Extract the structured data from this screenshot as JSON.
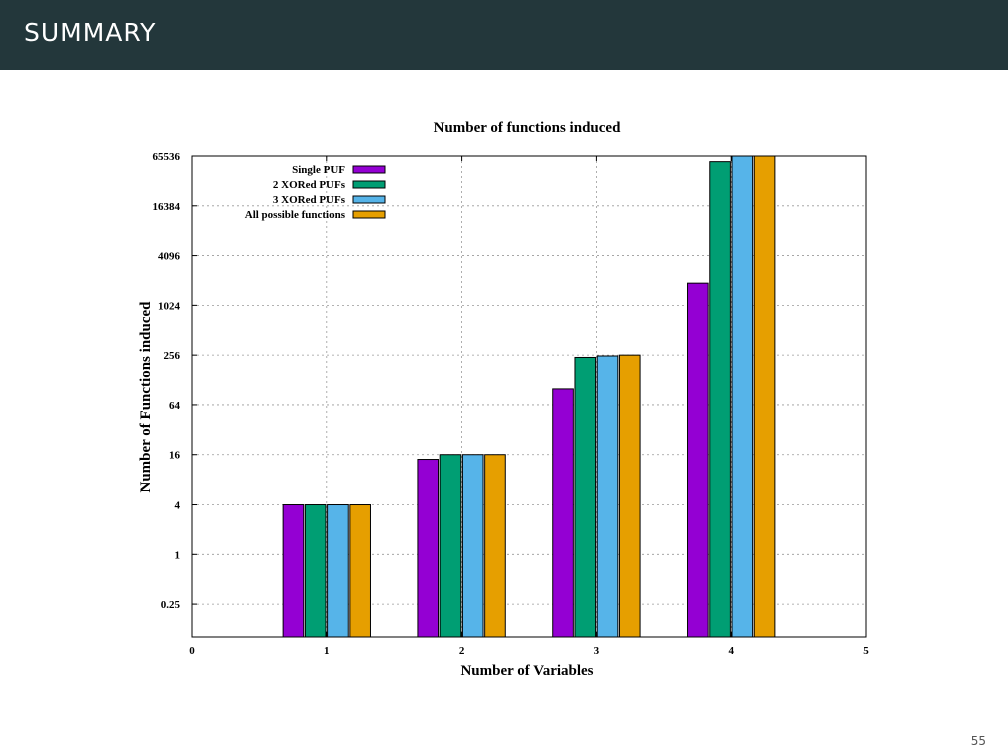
{
  "header": {
    "title": "SUMMARY"
  },
  "footer": {
    "page_number": "55"
  },
  "colors": {
    "header_bg": "#23373b",
    "single_puf": "#9400d3",
    "xor2": "#009e73",
    "xor3": "#56b4e9",
    "all_functions": "#e69f00"
  },
  "chart_data": {
    "type": "bar",
    "title": "Number of functions induced",
    "xlabel": "Number of Variables",
    "ylabel": "Number of Functions induced",
    "y_scale": "log2",
    "ylim": [
      0.1,
      65536
    ],
    "xlim": [
      0,
      5
    ],
    "x_ticks": [
      "0",
      "1",
      "2",
      "3",
      "4",
      "5"
    ],
    "y_ticks": [
      {
        "value": 0.25,
        "label": "0.25"
      },
      {
        "value": 1,
        "label": "1"
      },
      {
        "value": 4,
        "label": "4"
      },
      {
        "value": 16,
        "label": "16"
      },
      {
        "value": 64,
        "label": "64"
      },
      {
        "value": 256,
        "label": "256"
      },
      {
        "value": 1024,
        "label": "1024"
      },
      {
        "value": 4096,
        "label": "4096"
      },
      {
        "value": 16384,
        "label": "16384"
      },
      {
        "value": 65536,
        "label": "65536"
      }
    ],
    "grid": true,
    "legend_position": "top-left",
    "x": [
      1,
      2,
      3,
      4
    ],
    "series": [
      {
        "name": "Single PUF",
        "color": "#9400d3",
        "values": [
          4,
          14,
          100,
          1900
        ]
      },
      {
        "name": "2 XORed PUFs",
        "color": "#009e73",
        "values": [
          4,
          16,
          240,
          56000
        ]
      },
      {
        "name": "3 XORed PUFs",
        "color": "#56b4e9",
        "values": [
          4,
          16,
          250,
          65536
        ]
      },
      {
        "name": "All possible functions",
        "color": "#e69f00",
        "values": [
          4,
          16,
          256,
          65536
        ]
      }
    ]
  }
}
